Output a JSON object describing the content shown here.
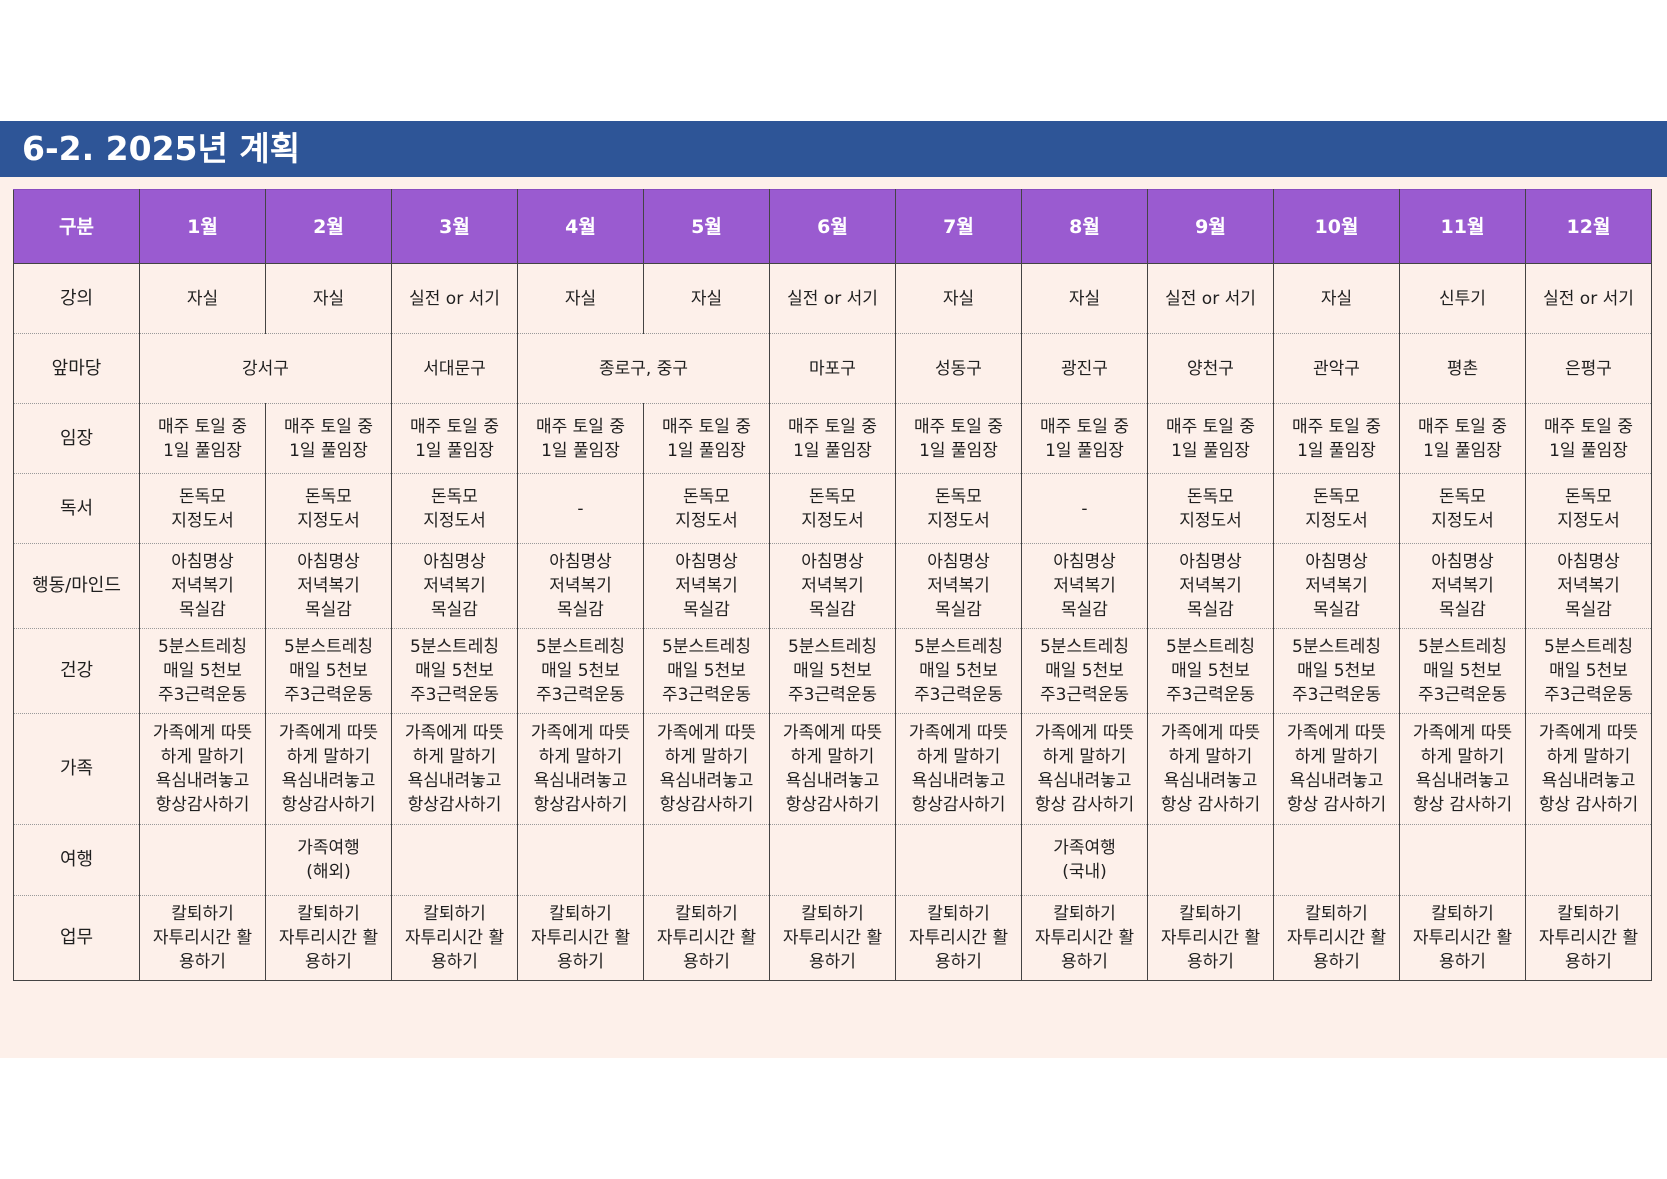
{
  "title": "6-2. 2025년 계획",
  "header": {
    "category_label": "구분",
    "months": [
      "1월",
      "2월",
      "3월",
      "4월",
      "5월",
      "6월",
      "7월",
      "8월",
      "9월",
      "10월",
      "11월",
      "12월"
    ]
  },
  "rows": [
    {
      "label": "강의",
      "cells": [
        {
          "span": 1,
          "lines": [
            "자실"
          ]
        },
        {
          "span": 1,
          "lines": [
            "자실"
          ]
        },
        {
          "span": 1,
          "lines": [
            "실전 or 서기"
          ]
        },
        {
          "span": 1,
          "lines": [
            "자실"
          ]
        },
        {
          "span": 1,
          "lines": [
            "자실"
          ]
        },
        {
          "span": 1,
          "lines": [
            "실전 or 서기"
          ]
        },
        {
          "span": 1,
          "lines": [
            "자실"
          ]
        },
        {
          "span": 1,
          "lines": [
            "자실"
          ]
        },
        {
          "span": 1,
          "lines": [
            "실전 or 서기"
          ]
        },
        {
          "span": 1,
          "lines": [
            "자실"
          ]
        },
        {
          "span": 1,
          "lines": [
            "신투기"
          ]
        },
        {
          "span": 1,
          "lines": [
            "실전 or 서기"
          ]
        }
      ]
    },
    {
      "label": "앞마당",
      "cells": [
        {
          "span": 2,
          "lines": [
            "강서구"
          ]
        },
        {
          "span": 1,
          "lines": [
            "서대문구"
          ]
        },
        {
          "span": 2,
          "lines": [
            "종로구, 중구"
          ]
        },
        {
          "span": 1,
          "lines": [
            "마포구"
          ]
        },
        {
          "span": 1,
          "lines": [
            "성동구"
          ]
        },
        {
          "span": 1,
          "lines": [
            "광진구"
          ]
        },
        {
          "span": 1,
          "lines": [
            "양천구"
          ]
        },
        {
          "span": 1,
          "lines": [
            "관악구"
          ]
        },
        {
          "span": 1,
          "lines": [
            "평촌"
          ]
        },
        {
          "span": 1,
          "lines": [
            "은평구"
          ]
        }
      ]
    },
    {
      "label": "임장",
      "cells": [
        {
          "span": 1,
          "lines": [
            "매주 토일 중",
            "1일 풀임장"
          ]
        },
        {
          "span": 1,
          "lines": [
            "매주 토일 중",
            "1일 풀임장"
          ]
        },
        {
          "span": 1,
          "lines": [
            "매주 토일 중",
            "1일 풀임장"
          ]
        },
        {
          "span": 1,
          "lines": [
            "매주 토일 중",
            "1일 풀임장"
          ]
        },
        {
          "span": 1,
          "lines": [
            "매주 토일 중",
            "1일 풀임장"
          ]
        },
        {
          "span": 1,
          "lines": [
            "매주 토일 중",
            "1일 풀임장"
          ]
        },
        {
          "span": 1,
          "lines": [
            "매주 토일 중",
            "1일 풀임장"
          ]
        },
        {
          "span": 1,
          "lines": [
            "매주 토일 중",
            "1일 풀임장"
          ]
        },
        {
          "span": 1,
          "lines": [
            "매주 토일 중",
            "1일 풀임장"
          ]
        },
        {
          "span": 1,
          "lines": [
            "매주 토일 중",
            "1일 풀임장"
          ]
        },
        {
          "span": 1,
          "lines": [
            "매주 토일 중",
            "1일 풀임장"
          ]
        },
        {
          "span": 1,
          "lines": [
            "매주 토일 중",
            "1일 풀임장"
          ]
        }
      ]
    },
    {
      "label": "독서",
      "cells": [
        {
          "span": 1,
          "lines": [
            "돈독모",
            "지정도서"
          ]
        },
        {
          "span": 1,
          "lines": [
            "돈독모",
            "지정도서"
          ]
        },
        {
          "span": 1,
          "lines": [
            "돈독모",
            "지정도서"
          ]
        },
        {
          "span": 1,
          "lines": [
            "-"
          ]
        },
        {
          "span": 1,
          "lines": [
            "돈독모",
            "지정도서"
          ]
        },
        {
          "span": 1,
          "lines": [
            "돈독모",
            "지정도서"
          ]
        },
        {
          "span": 1,
          "lines": [
            "돈독모",
            "지정도서"
          ]
        },
        {
          "span": 1,
          "lines": [
            "-"
          ]
        },
        {
          "span": 1,
          "lines": [
            "돈독모",
            "지정도서"
          ]
        },
        {
          "span": 1,
          "lines": [
            "돈독모",
            "지정도서"
          ]
        },
        {
          "span": 1,
          "lines": [
            "돈독모",
            "지정도서"
          ]
        },
        {
          "span": 1,
          "lines": [
            "돈독모",
            "지정도서"
          ]
        }
      ]
    },
    {
      "label": "행동/마인드",
      "cells": [
        {
          "span": 1,
          "lines": [
            "아침명상",
            "저녁복기",
            "목실감"
          ]
        },
        {
          "span": 1,
          "lines": [
            "아침명상",
            "저녁복기",
            "목실감"
          ]
        },
        {
          "span": 1,
          "lines": [
            "아침명상",
            "저녁복기",
            "목실감"
          ]
        },
        {
          "span": 1,
          "lines": [
            "아침명상",
            "저녁복기",
            "목실감"
          ]
        },
        {
          "span": 1,
          "lines": [
            "아침명상",
            "저녁복기",
            "목실감"
          ]
        },
        {
          "span": 1,
          "lines": [
            "아침명상",
            "저녁복기",
            "목실감"
          ]
        },
        {
          "span": 1,
          "lines": [
            "아침명상",
            "저녁복기",
            "목실감"
          ]
        },
        {
          "span": 1,
          "lines": [
            "아침명상",
            "저녁복기",
            "목실감"
          ]
        },
        {
          "span": 1,
          "lines": [
            "아침명상",
            "저녁복기",
            "목실감"
          ]
        },
        {
          "span": 1,
          "lines": [
            "아침명상",
            "저녁복기",
            "목실감"
          ]
        },
        {
          "span": 1,
          "lines": [
            "아침명상",
            "저녁복기",
            "목실감"
          ]
        },
        {
          "span": 1,
          "lines": [
            "아침명상",
            "저녁복기",
            "목실감"
          ]
        }
      ]
    },
    {
      "label": "건강",
      "cells": [
        {
          "span": 1,
          "lines": [
            "5분스트레칭",
            "매일 5천보",
            "주3근력운동"
          ]
        },
        {
          "span": 1,
          "lines": [
            "5분스트레칭",
            "매일 5천보",
            "주3근력운동"
          ]
        },
        {
          "span": 1,
          "lines": [
            "5분스트레칭",
            "매일 5천보",
            "주3근력운동"
          ]
        },
        {
          "span": 1,
          "lines": [
            "5분스트레칭",
            "매일 5천보",
            "주3근력운동"
          ]
        },
        {
          "span": 1,
          "lines": [
            "5분스트레칭",
            "매일 5천보",
            "주3근력운동"
          ]
        },
        {
          "span": 1,
          "lines": [
            "5분스트레칭",
            "매일 5천보",
            "주3근력운동"
          ]
        },
        {
          "span": 1,
          "lines": [
            "5분스트레칭",
            "매일 5천보",
            "주3근력운동"
          ]
        },
        {
          "span": 1,
          "lines": [
            "5분스트레칭",
            "매일 5천보",
            "주3근력운동"
          ]
        },
        {
          "span": 1,
          "lines": [
            "5분스트레칭",
            "매일 5천보",
            "주3근력운동"
          ]
        },
        {
          "span": 1,
          "lines": [
            "5분스트레칭",
            "매일 5천보",
            "주3근력운동"
          ]
        },
        {
          "span": 1,
          "lines": [
            "5분스트레칭",
            "매일 5천보",
            "주3근력운동"
          ]
        },
        {
          "span": 1,
          "lines": [
            "5분스트레칭",
            "매일 5천보",
            "주3근력운동"
          ]
        }
      ]
    },
    {
      "label": "가족",
      "cells": [
        {
          "span": 1,
          "lines": [
            "가족에게 따뜻",
            "하게 말하기",
            "욕심내려놓고",
            "항상감사하기"
          ]
        },
        {
          "span": 1,
          "lines": [
            "가족에게 따뜻",
            "하게 말하기",
            "욕심내려놓고",
            "항상감사하기"
          ]
        },
        {
          "span": 1,
          "lines": [
            "가족에게 따뜻",
            "하게 말하기",
            "욕심내려놓고",
            "항상감사하기"
          ]
        },
        {
          "span": 1,
          "lines": [
            "가족에게 따뜻",
            "하게 말하기",
            "욕심내려놓고",
            "항상감사하기"
          ]
        },
        {
          "span": 1,
          "lines": [
            "가족에게 따뜻",
            "하게 말하기",
            "욕심내려놓고",
            "항상감사하기"
          ]
        },
        {
          "span": 1,
          "lines": [
            "가족에게 따뜻",
            "하게 말하기",
            "욕심내려놓고",
            "항상감사하기"
          ]
        },
        {
          "span": 1,
          "lines": [
            "가족에게 따뜻",
            "하게 말하기",
            "욕심내려놓고",
            "항상감사하기"
          ]
        },
        {
          "span": 1,
          "lines": [
            "가족에게 따뜻",
            "하게 말하기",
            "욕심내려놓고",
            "항상 감사하기"
          ]
        },
        {
          "span": 1,
          "lines": [
            "가족에게 따뜻",
            "하게 말하기",
            "욕심내려놓고",
            "항상 감사하기"
          ]
        },
        {
          "span": 1,
          "lines": [
            "가족에게 따뜻",
            "하게 말하기",
            "욕심내려놓고",
            "항상 감사하기"
          ]
        },
        {
          "span": 1,
          "lines": [
            "가족에게 따뜻",
            "하게 말하기",
            "욕심내려놓고",
            "항상 감사하기"
          ]
        },
        {
          "span": 1,
          "lines": [
            "가족에게 따뜻",
            "하게 말하기",
            "욕심내려놓고",
            "항상 감사하기"
          ]
        }
      ]
    },
    {
      "label": "여행",
      "cells": [
        {
          "span": 1,
          "lines": []
        },
        {
          "span": 1,
          "lines": [
            "가족여행",
            "(해외)"
          ]
        },
        {
          "span": 1,
          "lines": []
        },
        {
          "span": 1,
          "lines": []
        },
        {
          "span": 1,
          "lines": []
        },
        {
          "span": 1,
          "lines": []
        },
        {
          "span": 1,
          "lines": []
        },
        {
          "span": 1,
          "lines": [
            "가족여행",
            "(국내)"
          ]
        },
        {
          "span": 1,
          "lines": []
        },
        {
          "span": 1,
          "lines": []
        },
        {
          "span": 1,
          "lines": []
        },
        {
          "span": 1,
          "lines": []
        }
      ]
    },
    {
      "label": "업무",
      "cells": [
        {
          "span": 1,
          "lines": [
            "칼퇴하기",
            "자투리시간 활",
            "용하기"
          ]
        },
        {
          "span": 1,
          "lines": [
            "칼퇴하기",
            "자투리시간 활",
            "용하기"
          ]
        },
        {
          "span": 1,
          "lines": [
            "칼퇴하기",
            "자투리시간 활",
            "용하기"
          ]
        },
        {
          "span": 1,
          "lines": [
            "칼퇴하기",
            "자투리시간 활",
            "용하기"
          ]
        },
        {
          "span": 1,
          "lines": [
            "칼퇴하기",
            "자투리시간 활",
            "용하기"
          ]
        },
        {
          "span": 1,
          "lines": [
            "칼퇴하기",
            "자투리시간 활",
            "용하기"
          ]
        },
        {
          "span": 1,
          "lines": [
            "칼퇴하기",
            "자투리시간 활",
            "용하기"
          ]
        },
        {
          "span": 1,
          "lines": [
            "칼퇴하기",
            "자투리시간 활",
            "용하기"
          ]
        },
        {
          "span": 1,
          "lines": [
            "칼퇴하기",
            "자투리시간 활",
            "용하기"
          ]
        },
        {
          "span": 1,
          "lines": [
            "칼퇴하기",
            "자투리시간 활",
            "용하기"
          ]
        },
        {
          "span": 1,
          "lines": [
            "칼퇴하기",
            "자투리시간 활",
            "용하기"
          ]
        },
        {
          "span": 1,
          "lines": [
            "칼퇴하기",
            "자투리시간 활",
            "용하기"
          ]
        }
      ]
    }
  ]
}
